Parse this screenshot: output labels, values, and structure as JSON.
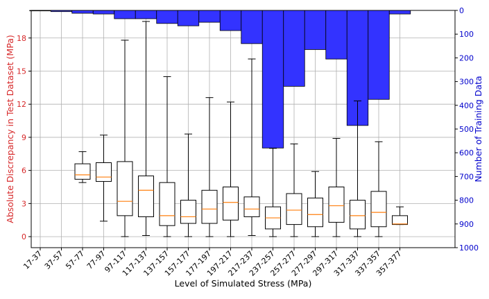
{
  "chart_data": {
    "type": "box",
    "xlabel": "Level of Simulated Stress (MPa)",
    "ylabel_left": "Absolute Discrepancy in Test Dataset (MPa)",
    "ylabel_right": "Number of Training Data",
    "categories": [
      "17-37",
      "37-57",
      "57-77",
      "77-97",
      "97-117",
      "117-137",
      "137-157",
      "157-177",
      "177-197",
      "197-217",
      "217-237",
      "237-257",
      "257-277",
      "277-297",
      "297-317",
      "317-337",
      "337-357",
      "357-377"
    ],
    "ylim_left": [
      -1,
      20.5
    ],
    "yticks_left": [
      0,
      3,
      6,
      9,
      12,
      15,
      18
    ],
    "ylim_right_inverted": [
      0,
      1000
    ],
    "yticks_right": [
      0,
      100,
      200,
      300,
      400,
      500,
      600,
      700,
      800,
      900,
      1000
    ],
    "grid": true,
    "colors": {
      "left_axis": "#d62728",
      "right_axis": "#0000cc",
      "bars": "#3333ff",
      "median": "#ff7f0e",
      "box": "#000000"
    },
    "boxes": [
      null,
      null,
      {
        "whislo": 4.9,
        "q1": 5.2,
        "med": 5.6,
        "q3": 6.6,
        "whishi": 7.7
      },
      {
        "whislo": 1.4,
        "q1": 5.0,
        "med": 5.4,
        "q3": 6.7,
        "whishi": 9.2
      },
      {
        "whislo": 0.0,
        "q1": 1.9,
        "med": 3.2,
        "q3": 6.8,
        "whishi": 17.8
      },
      {
        "whislo": 0.1,
        "q1": 1.8,
        "med": 4.2,
        "q3": 5.5,
        "whishi": 19.5
      },
      {
        "whislo": 0.0,
        "q1": 1.0,
        "med": 1.9,
        "q3": 4.9,
        "whishi": 14.5
      },
      {
        "whislo": 0.0,
        "q1": 1.2,
        "med": 1.8,
        "q3": 3.3,
        "whishi": 9.3
      },
      {
        "whislo": 0.0,
        "q1": 1.2,
        "med": 2.5,
        "q3": 4.2,
        "whishi": 12.6
      },
      {
        "whislo": 0.0,
        "q1": 1.5,
        "med": 3.1,
        "q3": 4.5,
        "whishi": 12.2
      },
      {
        "whislo": 0.1,
        "q1": 1.8,
        "med": 2.5,
        "q3": 3.6,
        "whishi": 16.1
      },
      {
        "whislo": 0.0,
        "q1": 0.7,
        "med": 1.7,
        "q3": 2.7,
        "whishi": 8.0
      },
      {
        "whislo": 0.0,
        "q1": 1.1,
        "med": 2.4,
        "q3": 3.9,
        "whishi": 8.4
      },
      {
        "whislo": 0.0,
        "q1": 0.9,
        "med": 2.0,
        "q3": 3.5,
        "whishi": 5.9
      },
      {
        "whislo": 0.0,
        "q1": 1.3,
        "med": 2.8,
        "q3": 4.5,
        "whishi": 8.9
      },
      {
        "whislo": 0.0,
        "q1": 0.7,
        "med": 1.9,
        "q3": 3.3,
        "whishi": 12.3
      },
      {
        "whislo": 0.0,
        "q1": 0.9,
        "med": 2.2,
        "q3": 4.1,
        "whishi": 8.6
      },
      {
        "whislo": 1.1,
        "q1": 1.1,
        "med": 1.15,
        "q3": 1.9,
        "whishi": 2.7
      }
    ],
    "training_counts": [
      2,
      5,
      12,
      15,
      35,
      35,
      55,
      65,
      50,
      85,
      140,
      580,
      320,
      165,
      205,
      485,
      375,
      15
    ]
  }
}
